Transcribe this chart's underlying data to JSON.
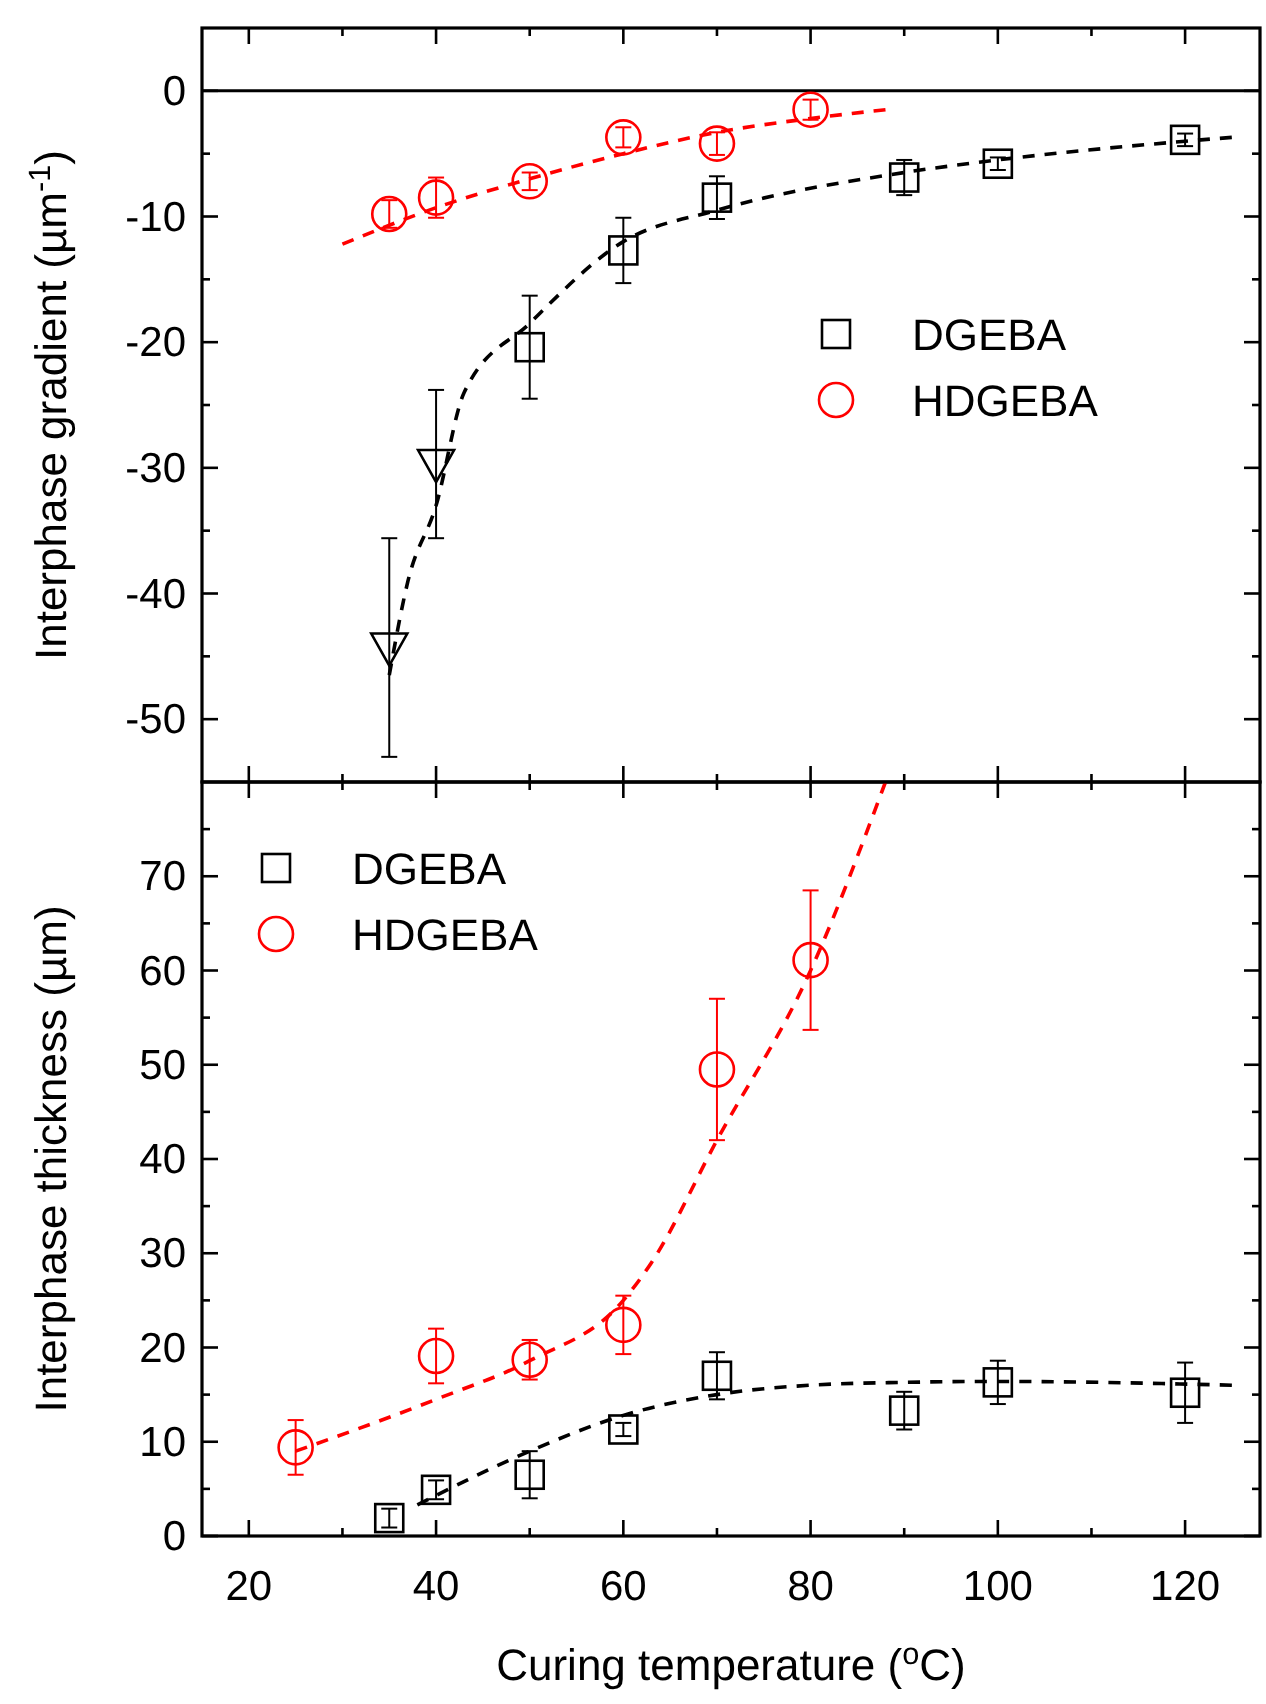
{
  "chart_data": [
    {
      "type": "scatter",
      "ylabel": "Interphase gradient (µm$^{-1}$)",
      "xlim": [
        15,
        128
      ],
      "ylim": [
        -55,
        5
      ],
      "tick_labels": "y",
      "legend": "right",
      "xticks": [
        20,
        {
          "value": 30,
          "label": null
        },
        40,
        {
          "value": 50,
          "label": null
        },
        60,
        {
          "value": 70,
          "label": null
        },
        80,
        {
          "value": 90,
          "label": null
        },
        100,
        {
          "value": 110,
          "label": null
        },
        120
      ],
      "yticks": [
        -50,
        {
          "value": -45,
          "label": null
        },
        -40,
        {
          "value": -35,
          "label": null
        },
        -30,
        {
          "value": -25,
          "label": null
        },
        -20,
        {
          "value": -15,
          "label": null
        },
        -10,
        {
          "value": -5,
          "label": null
        },
        0
      ],
      "ref_lines": [
        {
          "axis": "y",
          "value": 0,
          "color": "#000000",
          "line_style": "solid"
        }
      ],
      "series": [
        {
          "name": "DGEBA",
          "color": "#000000",
          "marker": "square",
          "x": [
            50,
            60,
            70,
            90,
            100,
            120
          ],
          "values": [
            -20.4,
            -12.7,
            -8.5,
            -6.9,
            -5.8,
            -3.9
          ],
          "errors": [
            4.1,
            2.6,
            1.7,
            1.4,
            0.5,
            0.5
          ]
        },
        {
          "color": "#000000",
          "marker": "triangle",
          "x": [
            35,
            40
          ],
          "values": [
            -44.3,
            -29.7
          ],
          "errors": [
            8.7,
            5.9
          ]
        },
        {
          "name": "HDGEBA",
          "color": "#ff0000",
          "marker": "circle",
          "x": [
            35,
            40,
            50,
            60,
            70,
            80
          ],
          "values": [
            -9.8,
            -8.5,
            -7.2,
            -3.7,
            -4.2,
            -1.5
          ],
          "errors": [
            1.1,
            1.6,
            0.7,
            0.8,
            0.9,
            0.8
          ]
        },
        {
          "type": "line",
          "color": "#000000",
          "line_style": "dashed",
          "marker": "none",
          "x": [
            35,
            37,
            40,
            43,
            50,
            60,
            70,
            90,
            100,
            125
          ],
          "values": [
            -46.5,
            -39,
            -33,
            -24,
            -18.5,
            -12,
            -9.5,
            -6.5,
            -5.5,
            -3.7
          ]
        },
        {
          "type": "line",
          "color": "#ff0000",
          "line_style": "dashed",
          "marker": "none",
          "x": [
            30,
            40,
            50,
            60,
            70,
            80,
            88
          ],
          "values": [
            -12.2,
            -9.3,
            -7,
            -5,
            -3.3,
            -2.2,
            -1.5
          ]
        }
      ]
    },
    {
      "type": "scatter",
      "xlabel": "Curing temperature ($^{o}$C)",
      "ylabel": "Interphase thickness (µm)",
      "xlim": [
        15,
        128
      ],
      "ylim": [
        0,
        80
      ],
      "legend": "top left",
      "xticks": [
        20,
        {
          "value": 30,
          "label": null
        },
        40,
        {
          "value": 50,
          "label": null
        },
        60,
        {
          "value": 70,
          "label": null
        },
        80,
        {
          "value": 90,
          "label": null
        },
        100,
        {
          "value": 110,
          "label": null
        },
        120
      ],
      "yticks": [
        0,
        {
          "value": 5,
          "label": null
        },
        10,
        {
          "value": 15,
          "label": null
        },
        20,
        {
          "value": 25,
          "label": null
        },
        30,
        {
          "value": 35,
          "label": null
        },
        40,
        {
          "value": 45,
          "label": null
        },
        50,
        {
          "value": 55,
          "label": null
        },
        60,
        {
          "value": 65,
          "label": null
        },
        70,
        {
          "value": 75,
          "label": null
        }
      ],
      "series": [
        {
          "name": "DGEBA",
          "color": "#000000",
          "marker": "square",
          "x": [
            35,
            40,
            50,
            60,
            70,
            90,
            100,
            120
          ],
          "values": [
            1.9,
            4.9,
            6.5,
            11.3,
            17,
            13.3,
            16.3,
            15.2
          ],
          "errors": [
            1,
            1,
            2.5,
            0.7,
            2.5,
            2,
            2.3,
            3.2
          ]
        },
        {
          "name": "HDGEBA",
          "color": "#ff0000",
          "marker": "circle",
          "x": [
            25,
            40,
            50,
            60,
            70,
            80
          ],
          "values": [
            9.4,
            19.1,
            18.7,
            22.4,
            49.5,
            61.1
          ],
          "errors": [
            2.9,
            2.9,
            2.1,
            3.1,
            7.5,
            7.4
          ]
        },
        {
          "type": "line",
          "color": "#000000",
          "line_style": "dashed",
          "marker": "none",
          "x": [
            38,
            50,
            60,
            70,
            80,
            90,
            100,
            125
          ],
          "values": [
            3.3,
            9,
            12.8,
            15,
            16,
            16.3,
            16.4,
            16
          ]
        },
        {
          "type": "line",
          "color": "#ff0000",
          "line_style": "dashed",
          "marker": "none",
          "x": [
            25,
            40,
            50,
            60,
            63,
            70,
            80,
            88
          ],
          "values": [
            9,
            14.5,
            18.6,
            25,
            29,
            42,
            60,
            80
          ]
        }
      ]
    }
  ]
}
